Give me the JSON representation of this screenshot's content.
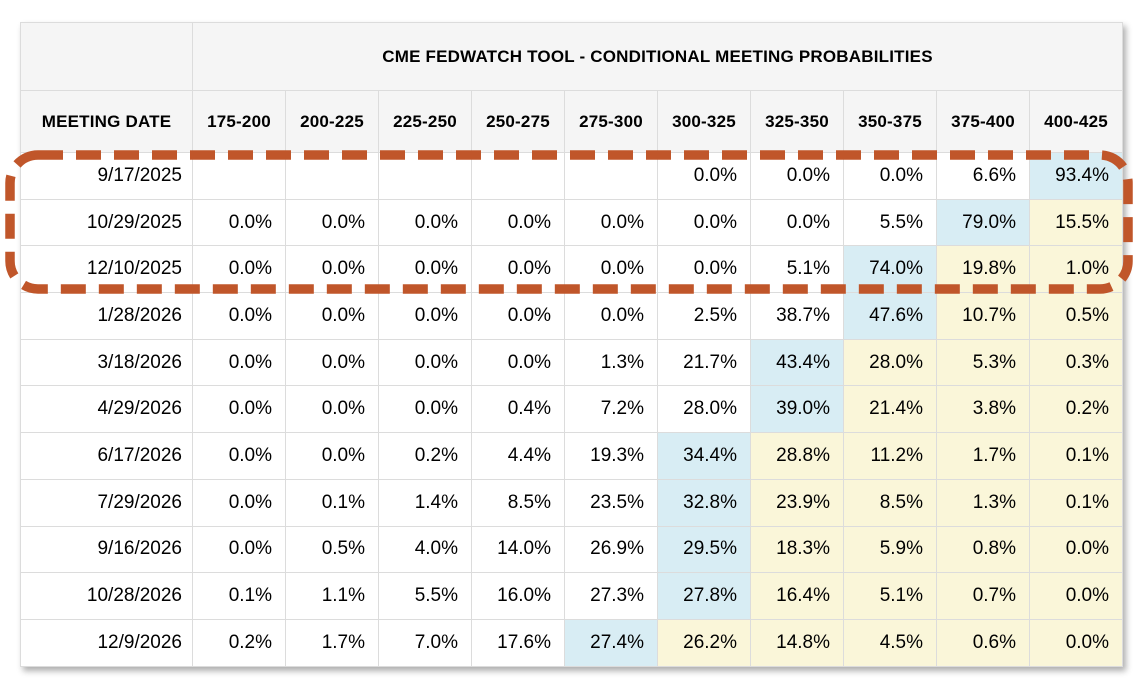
{
  "title": "CME FEDWATCH TOOL - CONDITIONAL MEETING PROBABILITIES",
  "columns": {
    "date_header": "MEETING DATE",
    "rate_ranges": [
      "175-200",
      "200-225",
      "225-250",
      "250-275",
      "275-300",
      "300-325",
      "325-350",
      "350-375",
      "375-400",
      "400-425"
    ]
  },
  "rows": [
    {
      "date": "9/17/2025",
      "values": [
        "",
        "",
        "",
        "",
        "",
        "0.0%",
        "0.0%",
        "0.0%",
        "6.6%",
        "93.4%"
      ],
      "highlights": [
        "",
        "",
        "",
        "",
        "",
        "",
        "",
        "",
        "",
        "blue"
      ]
    },
    {
      "date": "10/29/2025",
      "values": [
        "0.0%",
        "0.0%",
        "0.0%",
        "0.0%",
        "0.0%",
        "0.0%",
        "0.0%",
        "5.5%",
        "79.0%",
        "15.5%"
      ],
      "highlights": [
        "",
        "",
        "",
        "",
        "",
        "",
        "",
        "",
        "blue",
        "yellow"
      ]
    },
    {
      "date": "12/10/2025",
      "values": [
        "0.0%",
        "0.0%",
        "0.0%",
        "0.0%",
        "0.0%",
        "0.0%",
        "5.1%",
        "74.0%",
        "19.8%",
        "1.0%"
      ],
      "highlights": [
        "",
        "",
        "",
        "",
        "",
        "",
        "",
        "blue",
        "yellow",
        "yellow"
      ]
    },
    {
      "date": "1/28/2026",
      "values": [
        "0.0%",
        "0.0%",
        "0.0%",
        "0.0%",
        "0.0%",
        "2.5%",
        "38.7%",
        "47.6%",
        "10.7%",
        "0.5%"
      ],
      "highlights": [
        "",
        "",
        "",
        "",
        "",
        "",
        "",
        "blue",
        "yellow",
        "yellow"
      ]
    },
    {
      "date": "3/18/2026",
      "values": [
        "0.0%",
        "0.0%",
        "0.0%",
        "0.0%",
        "1.3%",
        "21.7%",
        "43.4%",
        "28.0%",
        "5.3%",
        "0.3%"
      ],
      "highlights": [
        "",
        "",
        "",
        "",
        "",
        "",
        "blue",
        "yellow",
        "yellow",
        "yellow"
      ]
    },
    {
      "date": "4/29/2026",
      "values": [
        "0.0%",
        "0.0%",
        "0.0%",
        "0.4%",
        "7.2%",
        "28.0%",
        "39.0%",
        "21.4%",
        "3.8%",
        "0.2%"
      ],
      "highlights": [
        "",
        "",
        "",
        "",
        "",
        "",
        "blue",
        "yellow",
        "yellow",
        "yellow"
      ]
    },
    {
      "date": "6/17/2026",
      "values": [
        "0.0%",
        "0.0%",
        "0.2%",
        "4.4%",
        "19.3%",
        "34.4%",
        "28.8%",
        "11.2%",
        "1.7%",
        "0.1%"
      ],
      "highlights": [
        "",
        "",
        "",
        "",
        "",
        "blue",
        "yellow",
        "yellow",
        "yellow",
        "yellow"
      ]
    },
    {
      "date": "7/29/2026",
      "values": [
        "0.0%",
        "0.1%",
        "1.4%",
        "8.5%",
        "23.5%",
        "32.8%",
        "23.9%",
        "8.5%",
        "1.3%",
        "0.1%"
      ],
      "highlights": [
        "",
        "",
        "",
        "",
        "",
        "blue",
        "yellow",
        "yellow",
        "yellow",
        "yellow"
      ]
    },
    {
      "date": "9/16/2026",
      "values": [
        "0.0%",
        "0.5%",
        "4.0%",
        "14.0%",
        "26.9%",
        "29.5%",
        "18.3%",
        "5.9%",
        "0.8%",
        "0.0%"
      ],
      "highlights": [
        "",
        "",
        "",
        "",
        "",
        "blue",
        "yellow",
        "yellow",
        "yellow",
        "yellow"
      ]
    },
    {
      "date": "10/28/2026",
      "values": [
        "0.1%",
        "1.1%",
        "5.5%",
        "16.0%",
        "27.3%",
        "27.8%",
        "16.4%",
        "5.1%",
        "0.7%",
        "0.0%"
      ],
      "highlights": [
        "",
        "",
        "",
        "",
        "",
        "blue",
        "yellow",
        "yellow",
        "yellow",
        "yellow"
      ]
    },
    {
      "date": "12/9/2026",
      "values": [
        "0.2%",
        "1.7%",
        "7.0%",
        "17.6%",
        "27.4%",
        "26.2%",
        "14.8%",
        "4.5%",
        "0.6%",
        "0.0%"
      ],
      "highlights": [
        "",
        "",
        "",
        "",
        "blue",
        "yellow",
        "yellow",
        "yellow",
        "yellow",
        "yellow"
      ]
    }
  ],
  "colors": {
    "highlight_blue": "#d8edf4",
    "highlight_yellow": "#faf6d9",
    "header_bg": "#f5f5f5",
    "grid_border": "#dcdcdc",
    "annotation_dash": "#c0562a"
  },
  "annotation": {
    "shape": "dashed-rounded-rectangle",
    "rows_enclosed": [
      "9/17/2025",
      "10/29/2025",
      "12/10/2025"
    ]
  }
}
